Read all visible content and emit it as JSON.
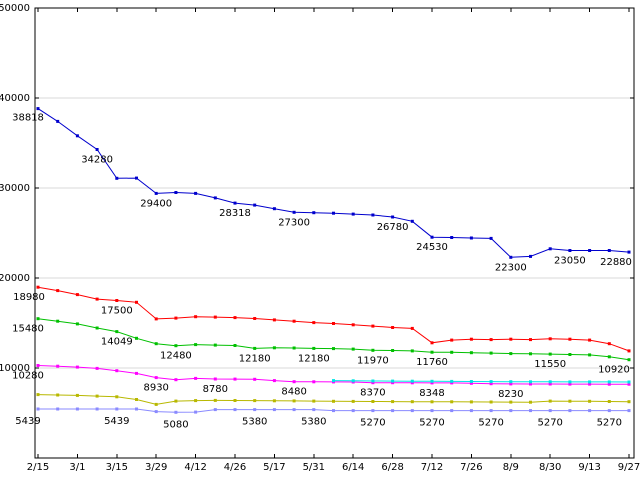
{
  "chart_data": {
    "type": "line",
    "title": "",
    "xlabel": "",
    "ylabel": "",
    "ylim": [
      0,
      50000
    ],
    "grid": "horizontal",
    "legend": "none",
    "points_per_tick": 2,
    "x_tick_labels": [
      "2/15",
      "3/1",
      "3/15",
      "3/29",
      "4/12",
      "4/26",
      "5/17",
      "5/31",
      "6/14",
      "6/28",
      "7/12",
      "7/26",
      "8/9",
      "8/30",
      "9/13",
      "9/27"
    ],
    "y_ticks": [
      {
        "value": 10000,
        "label": "10000"
      },
      {
        "value": 20000,
        "label": "20000"
      },
      {
        "value": 30000,
        "label": "30000"
      },
      {
        "value": 40000,
        "label": "40000"
      },
      {
        "value": 50000,
        "label": "50000"
      }
    ],
    "colors": {
      "background": "#ffffff",
      "border": "#000000",
      "grid": "#d9d9d9",
      "text": "#000000"
    },
    "series": [
      {
        "name": "blue",
        "color": "#0000cd",
        "values": [
          38818,
          37400,
          35800,
          34280,
          31080,
          31100,
          29400,
          29500,
          29400,
          28900,
          28318,
          28100,
          27700,
          27300,
          27250,
          27200,
          27100,
          27000,
          26780,
          26300,
          24530,
          24500,
          24450,
          24400,
          22300,
          22400,
          23250,
          23050,
          23050,
          23050,
          22880
        ],
        "labels": [
          {
            "i": 0,
            "text": "38818",
            "dx": -10,
            "dy": 12
          },
          {
            "i": 3,
            "text": "34280"
          },
          {
            "i": 6,
            "text": "29400"
          },
          {
            "i": 10,
            "text": "28318"
          },
          {
            "i": 13,
            "text": "27300"
          },
          {
            "i": 18,
            "text": "26780"
          },
          {
            "i": 20,
            "text": "24530"
          },
          {
            "i": 24,
            "text": "22300"
          },
          {
            "i": 27,
            "text": "23050"
          },
          {
            "i": 30,
            "text": "22880",
            "dx": -13
          }
        ]
      },
      {
        "name": "red",
        "color": "#ff0000",
        "values": [
          18980,
          18600,
          18150,
          17650,
          17500,
          17300,
          15450,
          15550,
          15700,
          15650,
          15600,
          15500,
          15350,
          15200,
          15050,
          14950,
          14800,
          14650,
          14500,
          14400,
          12800,
          13100,
          13200,
          13150,
          13200,
          13150,
          13250,
          13200,
          13100,
          12700,
          11900
        ],
        "labels": [
          {
            "i": 0,
            "text": "18980",
            "dx": -9
          },
          {
            "i": 4,
            "text": "17500"
          }
        ]
      },
      {
        "name": "green",
        "color": "#00c000",
        "values": [
          15480,
          15200,
          14900,
          14450,
          14049,
          13300,
          12700,
          12480,
          12600,
          12550,
          12500,
          12180,
          12250,
          12220,
          12180,
          12150,
          12100,
          11970,
          11940,
          11900,
          11760,
          11740,
          11700,
          11650,
          11600,
          11580,
          11550,
          11500,
          11450,
          11250,
          10920
        ],
        "labels": [
          {
            "i": 0,
            "text": "15480",
            "dx": -10
          },
          {
            "i": 4,
            "text": "14049"
          },
          {
            "i": 7,
            "text": "12480"
          },
          {
            "i": 11,
            "text": "12180"
          },
          {
            "i": 14,
            "text": "12180"
          },
          {
            "i": 17,
            "text": "11970"
          },
          {
            "i": 20,
            "text": "11760"
          },
          {
            "i": 26,
            "text": "11550"
          },
          {
            "i": 30,
            "text": "10920",
            "dx": -15
          }
        ]
      },
      {
        "name": "magenta",
        "color": "#ff00ff",
        "values": [
          10280,
          10200,
          10100,
          9950,
          9700,
          9400,
          8930,
          8700,
          8850,
          8780,
          8770,
          8750,
          8600,
          8480,
          8470,
          8460,
          8440,
          8370,
          8365,
          8360,
          8348,
          8340,
          8300,
          8260,
          8230,
          8225,
          8220,
          8215,
          8210,
          8205,
          8200
        ],
        "labels": [
          {
            "i": 0,
            "text": "10280",
            "dx": -10
          },
          {
            "i": 6,
            "text": "8930"
          },
          {
            "i": 9,
            "text": "8780"
          },
          {
            "i": 13,
            "text": "8480"
          },
          {
            "i": 17,
            "text": "8370"
          },
          {
            "i": 20,
            "text": "8348"
          },
          {
            "i": 24,
            "text": "8230"
          }
        ]
      },
      {
        "name": "cyan",
        "color": "#00e5e5",
        "values": [
          null,
          null,
          null,
          null,
          null,
          null,
          null,
          null,
          null,
          null,
          null,
          null,
          null,
          null,
          null,
          8600,
          8580,
          8560,
          8545,
          8530,
          8520,
          8510,
          8500,
          8490,
          8480,
          8470,
          8465,
          8460,
          8455,
          8450,
          8445
        ],
        "labels": []
      },
      {
        "name": "dark-yellow",
        "color": "#b8b800",
        "values": [
          7050,
          7000,
          6950,
          6880,
          6800,
          6500,
          5950,
          6320,
          6380,
          6400,
          6390,
          6380,
          6360,
          6340,
          6320,
          6300,
          6290,
          6280,
          6270,
          6260,
          6250,
          6240,
          6230,
          6220,
          6210,
          6200,
          6320,
          6310,
          6300,
          6280,
          6260
        ],
        "labels": []
      },
      {
        "name": "light-blue",
        "color": "#8a8aff",
        "values": [
          5439,
          5439,
          5439,
          5439,
          5439,
          5439,
          5150,
          5080,
          5100,
          5380,
          5380,
          5380,
          5380,
          5380,
          5380,
          5270,
          5270,
          5270,
          5270,
          5270,
          5270,
          5270,
          5270,
          5270,
          5270,
          5270,
          5270,
          5270,
          5270,
          5270,
          5270
        ],
        "labels": [
          {
            "i": 0,
            "text": "5439",
            "dx": -10,
            "dy": 15
          },
          {
            "i": 4,
            "text": "5439",
            "dy": 15
          },
          {
            "i": 7,
            "text": "5080",
            "dy": 15
          },
          {
            "i": 11,
            "text": "5380",
            "dy": 15
          },
          {
            "i": 14,
            "text": "5380",
            "dy": 15
          },
          {
            "i": 17,
            "text": "5270",
            "dy": 15
          },
          {
            "i": 20,
            "text": "5270",
            "dy": 15
          },
          {
            "i": 23,
            "text": "5270",
            "dy": 15
          },
          {
            "i": 26,
            "text": "5270",
            "dy": 15
          },
          {
            "i": 29,
            "text": "5270",
            "dy": 15
          }
        ]
      }
    ]
  }
}
